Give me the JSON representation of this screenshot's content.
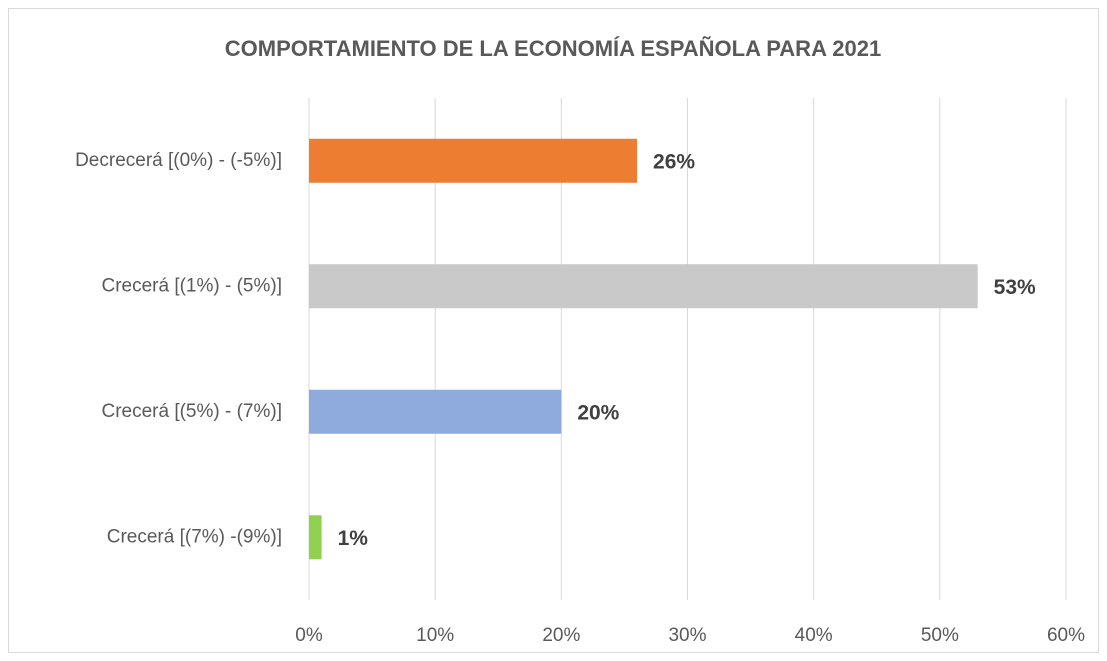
{
  "chart_data": {
    "type": "bar",
    "orientation": "horizontal",
    "title": "COMPORTAMIENTO DE LA ECONOMÍA ESPAÑOLA PARA 2021",
    "categories": [
      "Decrecerá [(0%) - (-5%)]",
      "Crecerá [(1%) - (5%)]",
      "Crecerá [(5%) - (7%)]",
      "Crecerá [(7%) -(9%)]"
    ],
    "values": [
      26,
      53,
      20,
      1
    ],
    "value_labels": [
      "26%",
      "53%",
      "20%",
      "1%"
    ],
    "colors": [
      "#ed7d31",
      "#c9c9c9",
      "#8faadc",
      "#92d050"
    ],
    "xlim": [
      0,
      60
    ],
    "xticks": [
      {
        "value": 0,
        "label": "0%"
      },
      {
        "value": 10,
        "label": "10%"
      },
      {
        "value": 20,
        "label": "20%"
      },
      {
        "value": 30,
        "label": "30%"
      },
      {
        "value": 40,
        "label": "40%"
      },
      {
        "value": 50,
        "label": "50%"
      },
      {
        "value": 60,
        "label": "60%"
      }
    ],
    "grid": true
  }
}
